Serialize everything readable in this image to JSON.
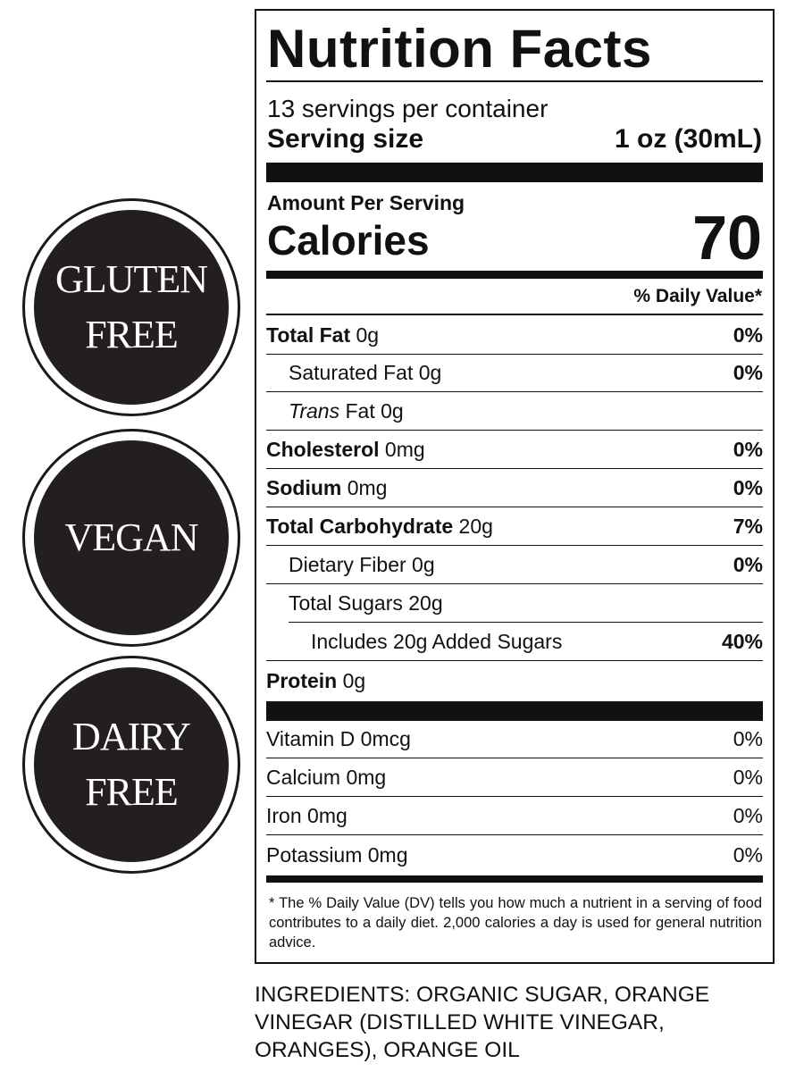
{
  "badges": [
    {
      "line1": "GLUTEN",
      "line2": "FREE"
    },
    {
      "line1": "VEGAN",
      "line2": ""
    },
    {
      "line1": "DAIRY",
      "line2": "FREE"
    }
  ],
  "label": {
    "title": "Nutrition Facts",
    "servings_per_container": "13 servings per container",
    "serving_size_label": "Serving size",
    "serving_size_value": "1 oz (30mL)",
    "amount_per_serving": "Amount Per Serving",
    "calories_label": "Calories",
    "calories_value": "70",
    "daily_value_header": "% Daily Value*",
    "nutrients": [
      {
        "name": "Total Fat",
        "amount": "0g",
        "dv": "0%"
      },
      {
        "name": "Saturated Fat",
        "amount": "0g",
        "dv": "0%"
      },
      {
        "name_italic": "Trans",
        "name": "Fat",
        "amount": "0g",
        "dv": ""
      },
      {
        "name": "Cholesterol",
        "amount": "0mg",
        "dv": "0%"
      },
      {
        "name": "Sodium",
        "amount": "0mg",
        "dv": "0%"
      },
      {
        "name": "Total Carbohydrate",
        "amount": "20g",
        "dv": "7%"
      },
      {
        "name": "Dietary Fiber",
        "amount": "0g",
        "dv": "0%"
      },
      {
        "name": "Total Sugars",
        "amount": "20g",
        "dv": ""
      },
      {
        "name": "Includes 20g Added Sugars",
        "amount": "",
        "dv": "40%"
      },
      {
        "name": "Protein",
        "amount": "0g",
        "dv": ""
      }
    ],
    "vitamins": [
      {
        "name": "Vitamin D",
        "amount": "0mcg",
        "dv": "0%"
      },
      {
        "name": "Calcium",
        "amount": "0mg",
        "dv": "0%"
      },
      {
        "name": "Iron",
        "amount": "0mg",
        "dv": "0%"
      },
      {
        "name": "Potassium",
        "amount": "0mg",
        "dv": "0%"
      }
    ],
    "footnote": "* The % Daily Value (DV) tells you how much a nutrient in a serving of food contributes to a daily diet. 2,000 calories a day is used for general nutrition advice."
  },
  "ingredients": "INGREDIENTS: ORGANIC SUGAR, ORANGE VINEGAR (DISTILLED WHITE VINEGAR, ORANGES), ORANGE OIL"
}
